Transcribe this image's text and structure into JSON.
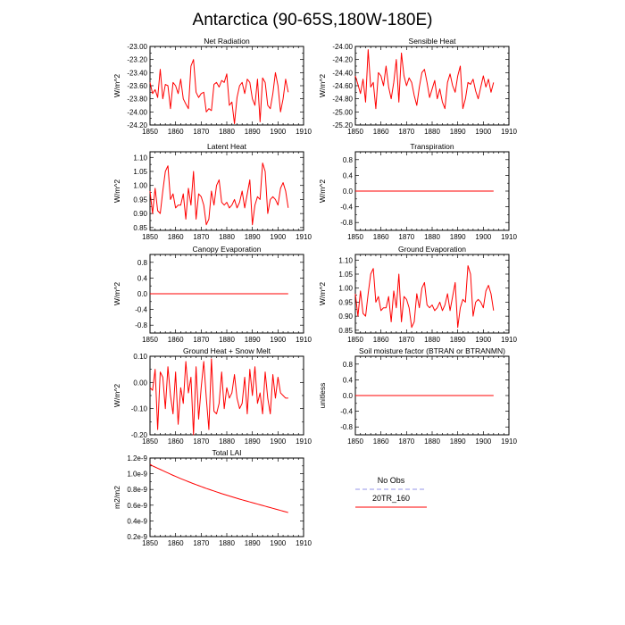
{
  "figure_title": "Antarctica (90-65S,180W-180E)",
  "colors": {
    "model": "#ff0000",
    "obs": "#aaaaee",
    "axis": "#000000"
  },
  "legend": {
    "entries": [
      "No Obs",
      "20TR_160"
    ]
  },
  "chart_data": [
    {
      "type": "line",
      "title": "Net Radiation",
      "ylabel": "W/m^2",
      "xlim": [
        1850,
        1910
      ],
      "x_ticks": [
        1850,
        1860,
        1870,
        1880,
        1890,
        1900,
        1910
      ],
      "ylim": [
        -24.2,
        -23.0
      ],
      "y_ticks": [
        "-23.00",
        "-23.20",
        "-23.40",
        "-23.60",
        "-23.80",
        "-24.00",
        "-24.20"
      ],
      "y_tick_values": [
        -23.0,
        -23.2,
        -23.4,
        -23.6,
        -23.8,
        -24.0,
        -24.2
      ],
      "series": [
        {
          "x_start": 1850,
          "x_step": 1,
          "values": [
            -23.55,
            -23.72,
            -23.66,
            -23.78,
            -23.35,
            -23.8,
            -23.58,
            -23.6,
            -23.95,
            -23.55,
            -23.6,
            -23.72,
            -23.5,
            -23.8,
            -23.88,
            -23.95,
            -23.3,
            -23.2,
            -23.7,
            -23.78,
            -23.72,
            -23.7,
            -24.0,
            -23.95,
            -23.98,
            -23.58,
            -23.55,
            -23.62,
            -23.52,
            -23.55,
            -23.42,
            -23.9,
            -23.85,
            -24.18,
            -23.78,
            -23.6,
            -23.55,
            -23.72,
            -23.5,
            -23.55,
            -23.8,
            -23.9,
            -23.5,
            -24.15,
            -23.48,
            -23.55,
            -23.9,
            -23.95,
            -23.72,
            -23.4,
            -23.6,
            -24.0,
            -23.8,
            -23.5,
            -23.7
          ]
        }
      ]
    },
    {
      "type": "line",
      "title": "Sensible Heat",
      "ylabel": "W/m^2",
      "xlim": [
        1850,
        1910
      ],
      "x_ticks": [
        1850,
        1860,
        1870,
        1880,
        1890,
        1900,
        1910
      ],
      "ylim": [
        -25.2,
        -24.0
      ],
      "y_ticks": [
        "-24.00",
        "-24.20",
        "-24.40",
        "-24.60",
        "-24.80",
        "-25.00",
        "-25.20"
      ],
      "y_tick_values": [
        -24.0,
        -24.2,
        -24.4,
        -24.6,
        -24.8,
        -25.0,
        -25.2
      ],
      "series": [
        {
          "x_start": 1850,
          "x_step": 1,
          "values": [
            -24.45,
            -24.58,
            -24.72,
            -24.5,
            -24.85,
            -24.05,
            -24.62,
            -24.55,
            -24.95,
            -24.4,
            -24.45,
            -24.6,
            -24.3,
            -24.62,
            -24.8,
            -24.55,
            -24.2,
            -24.85,
            -24.1,
            -24.45,
            -24.6,
            -24.48,
            -24.55,
            -24.75,
            -24.9,
            -24.62,
            -24.4,
            -24.35,
            -24.55,
            -24.78,
            -24.65,
            -24.52,
            -24.8,
            -24.65,
            -24.85,
            -24.95,
            -24.55,
            -24.42,
            -24.6,
            -24.7,
            -24.45,
            -24.3,
            -24.95,
            -24.8,
            -24.55,
            -24.58,
            -24.5,
            -24.68,
            -24.8,
            -24.62,
            -24.45,
            -24.62,
            -24.5,
            -24.7,
            -24.55
          ]
        }
      ]
    },
    {
      "type": "line",
      "title": "Latent Heat",
      "ylabel": "W/m^2",
      "xlim": [
        1850,
        1910
      ],
      "x_ticks": [
        1850,
        1860,
        1870,
        1880,
        1890,
        1900,
        1910
      ],
      "ylim": [
        0.84,
        1.12
      ],
      "y_ticks": [
        "1.10",
        "1.05",
        "1.00",
        "0.95",
        "0.90",
        "0.85"
      ],
      "y_tick_values": [
        1.1,
        1.05,
        1.0,
        0.95,
        0.9,
        0.85
      ],
      "series": [
        {
          "x_start": 1850,
          "x_step": 1,
          "values": [
            0.98,
            0.9,
            0.99,
            0.91,
            0.9,
            0.98,
            1.05,
            1.07,
            0.95,
            0.97,
            0.92,
            0.93,
            0.93,
            0.97,
            0.88,
            0.99,
            0.93,
            1.05,
            0.88,
            0.97,
            0.96,
            0.93,
            0.86,
            0.88,
            0.98,
            0.93,
            1.0,
            1.02,
            0.94,
            0.93,
            0.94,
            0.92,
            0.93,
            0.95,
            0.92,
            0.94,
            0.98,
            0.92,
            0.97,
            1.02,
            0.86,
            0.93,
            0.96,
            0.95,
            1.08,
            1.05,
            0.9,
            0.95,
            0.96,
            0.95,
            0.93,
            0.99,
            1.01,
            0.98,
            0.92
          ]
        }
      ]
    },
    {
      "type": "line",
      "title": "Transpiration",
      "ylabel": "W/m^2",
      "xlim": [
        1850,
        1910
      ],
      "x_ticks": [
        1850,
        1860,
        1870,
        1880,
        1890,
        1900,
        1910
      ],
      "ylim": [
        -1.0,
        1.0
      ],
      "y_ticks": [
        "0.8",
        "0.4",
        "0.0",
        "-0.4",
        "-0.8"
      ],
      "y_tick_values": [
        0.8,
        0.4,
        0.0,
        -0.4,
        -0.8
      ],
      "series": [
        {
          "x_start": 1850,
          "x_step": 1,
          "constant": 0.0,
          "count": 55
        }
      ]
    },
    {
      "type": "line",
      "title": "Canopy Evaporation",
      "ylabel": "W/m^2",
      "xlim": [
        1850,
        1910
      ],
      "x_ticks": [
        1850,
        1860,
        1870,
        1880,
        1890,
        1900,
        1910
      ],
      "ylim": [
        -1.0,
        1.0
      ],
      "y_ticks": [
        "0.8",
        "0.4",
        "0.0",
        "-0.4",
        "-0.8"
      ],
      "y_tick_values": [
        0.8,
        0.4,
        0.0,
        -0.4,
        -0.8
      ],
      "series": [
        {
          "x_start": 1850,
          "x_step": 1,
          "constant": 0.0,
          "count": 55
        }
      ]
    },
    {
      "type": "line",
      "title": "Ground Evaporation",
      "ylabel": "W/m^2",
      "xlim": [
        1850,
        1910
      ],
      "x_ticks": [
        1850,
        1860,
        1870,
        1880,
        1890,
        1900,
        1910
      ],
      "ylim": [
        0.84,
        1.12
      ],
      "y_ticks": [
        "1.10",
        "1.05",
        "1.00",
        "0.95",
        "0.90",
        "0.85"
      ],
      "y_tick_values": [
        1.1,
        1.05,
        1.0,
        0.95,
        0.9,
        0.85
      ],
      "series": [
        {
          "x_start": 1850,
          "x_step": 1,
          "values": [
            0.98,
            0.9,
            0.99,
            0.91,
            0.9,
            0.98,
            1.05,
            1.07,
            0.95,
            0.97,
            0.92,
            0.93,
            0.93,
            0.97,
            0.88,
            0.99,
            0.93,
            1.05,
            0.88,
            0.97,
            0.96,
            0.93,
            0.86,
            0.88,
            0.98,
            0.93,
            1.0,
            1.02,
            0.94,
            0.93,
            0.94,
            0.92,
            0.93,
            0.95,
            0.92,
            0.94,
            0.98,
            0.92,
            0.97,
            1.02,
            0.86,
            0.93,
            0.96,
            0.95,
            1.08,
            1.05,
            0.9,
            0.95,
            0.96,
            0.95,
            0.93,
            0.99,
            1.01,
            0.98,
            0.92
          ]
        }
      ]
    },
    {
      "type": "line",
      "title": "Ground Heat + Snow Melt",
      "ylabel": "W/m^2",
      "xlim": [
        1850,
        1910
      ],
      "x_ticks": [
        1850,
        1860,
        1870,
        1880,
        1890,
        1900,
        1910
      ],
      "ylim": [
        -0.2,
        0.1
      ],
      "y_ticks": [
        "0.10",
        "0.00",
        "-0.10",
        "-0.20"
      ],
      "y_tick_values": [
        0.1,
        0.0,
        -0.1,
        -0.2
      ],
      "series": [
        {
          "x_start": 1850,
          "x_step": 1,
          "values": [
            -0.02,
            -0.03,
            0.05,
            -0.18,
            0.04,
            0.02,
            -0.1,
            0.06,
            -0.05,
            -0.12,
            0.04,
            -0.16,
            -0.02,
            -0.08,
            0.08,
            -0.04,
            0.02,
            -0.2,
            0.06,
            -0.14,
            -0.02,
            0.08,
            -0.06,
            -0.18,
            0.09,
            -0.11,
            -0.12,
            -0.08,
            0.04,
            -0.1,
            -0.02,
            -0.06,
            -0.04,
            0.03,
            -0.06,
            -0.1,
            -0.08,
            0.02,
            -0.12,
            0.05,
            -0.05,
            0.06,
            -0.08,
            -0.04,
            -0.12,
            0.04,
            -0.06,
            -0.12,
            0.03,
            -0.06,
            0.02,
            -0.04,
            -0.05,
            -0.06,
            -0.06
          ]
        }
      ]
    },
    {
      "type": "line",
      "title": "Soil moisture factor (BTRAN or BTRANMN)",
      "ylabel": "unitless",
      "xlim": [
        1850,
        1910
      ],
      "x_ticks": [
        1850,
        1860,
        1870,
        1880,
        1890,
        1900,
        1910
      ],
      "ylim": [
        -1.0,
        1.0
      ],
      "y_ticks": [
        "0.8",
        "0.4",
        "0.0",
        "-0.4",
        "-0.8"
      ],
      "y_tick_values": [
        0.8,
        0.4,
        0.0,
        -0.4,
        -0.8
      ],
      "series": [
        {
          "x_start": 1850,
          "x_step": 1,
          "constant": 0.0,
          "count": 55
        }
      ]
    },
    {
      "type": "line",
      "title": "Total LAI",
      "ylabel": "m2/m2",
      "xlim": [
        1850,
        1910
      ],
      "x_ticks": [
        1850,
        1860,
        1870,
        1880,
        1890,
        1900,
        1910
      ],
      "ylim": [
        2e-10,
        1.2e-09
      ],
      "y_ticks": [
        "1.2e-9",
        "1.0e-9",
        "0.8e-9",
        "0.6e-9",
        "0.4e-9",
        "0.2e-9"
      ],
      "y_tick_values": [
        1.2e-09,
        1e-09,
        8e-10,
        6e-10,
        4e-10,
        2e-10
      ],
      "series": [
        {
          "x_start": 1850,
          "x_step": 1,
          "values": [
            1.12e-09,
            1.1e-09,
            1.085e-09,
            1.07e-09,
            1.055e-09,
            1.04e-09,
            1.025e-09,
            1.01e-09,
            9.95e-10,
            9.8e-10,
            9.66e-10,
            9.52e-10,
            9.38e-10,
            9.25e-10,
            9.12e-10,
            8.99e-10,
            8.86e-10,
            8.73e-10,
            8.61e-10,
            8.49e-10,
            8.37e-10,
            8.25e-10,
            8.13e-10,
            8.02e-10,
            7.91e-10,
            7.8e-10,
            7.69e-10,
            7.58e-10,
            7.47e-10,
            7.37e-10,
            7.27e-10,
            7.17e-10,
            7.07e-10,
            6.97e-10,
            6.87e-10,
            6.77e-10,
            6.68e-10,
            6.59e-10,
            6.5e-10,
            6.41e-10,
            6.32e-10,
            6.23e-10,
            6.14e-10,
            6.05e-10,
            5.96e-10,
            5.87e-10,
            5.78e-10,
            5.69e-10,
            5.6e-10,
            5.51e-10,
            5.42e-10,
            5.33e-10,
            5.24e-10,
            5.15e-10,
            5.06e-10
          ]
        }
      ]
    }
  ]
}
